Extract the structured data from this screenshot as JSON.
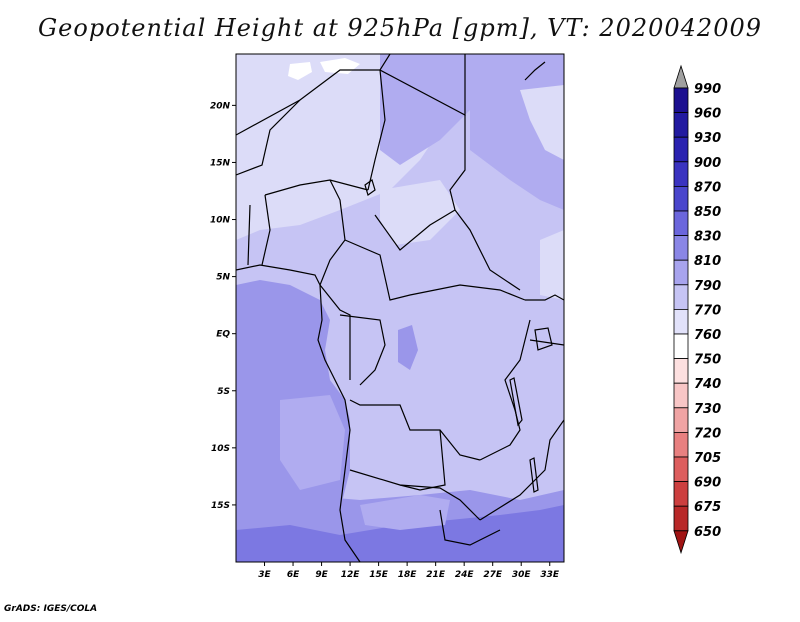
{
  "title": "Geopotential Height at 925hPa [gpm], VT: 2020042009",
  "credit": "GrADS: IGES/COLA",
  "map": {
    "lat_labels": [
      "20N",
      "15N",
      "10N",
      "5N",
      "EQ",
      "5S",
      "10S",
      "15S"
    ],
    "lon_labels": [
      "3E",
      "6E",
      "9E",
      "12E",
      "15E",
      "18E",
      "21E",
      "24E",
      "27E",
      "30E",
      "33E"
    ],
    "lat_range": [
      -20,
      24.5
    ],
    "lon_range": [
      0,
      34.5
    ]
  },
  "colorbar": {
    "levels": [
      {
        "label": "990",
        "color": "#1c1090"
      },
      {
        "label": "960",
        "color": "#221aa0"
      },
      {
        "label": "930",
        "color": "#2a22b0"
      },
      {
        "label": "900",
        "color": "#3a33c0"
      },
      {
        "label": "870",
        "color": "#4a46cc"
      },
      {
        "label": "850",
        "color": "#6b66dc"
      },
      {
        "label": "830",
        "color": "#8a86e6"
      },
      {
        "label": "810",
        "color": "#a8a4ee"
      },
      {
        "label": "790",
        "color": "#c6c4f4"
      },
      {
        "label": "770",
        "color": "#e2e2fa"
      },
      {
        "label": "760",
        "color": "#ffffff"
      },
      {
        "label": "750",
        "color": "#fde0e0"
      },
      {
        "label": "740",
        "color": "#f8c6c6"
      },
      {
        "label": "730",
        "color": "#f0a4a4"
      },
      {
        "label": "720",
        "color": "#e88080"
      },
      {
        "label": "705",
        "color": "#dd5e5e"
      },
      {
        "label": "690",
        "color": "#cc3f3f"
      },
      {
        "label": "675",
        "color": "#b82828"
      },
      {
        "label": "650",
        "color": "#a01414"
      }
    ],
    "top_arrow_color": "#a0a0a0",
    "bottom_arrow_color": "#a01414"
  },
  "field_colors": {
    "c770": "#dcdcf8",
    "c790": "#c6c4f4",
    "c810": "#b0acf0",
    "c830": "#9a96ea",
    "c850": "#7c78e2",
    "white": "#ffffff"
  }
}
